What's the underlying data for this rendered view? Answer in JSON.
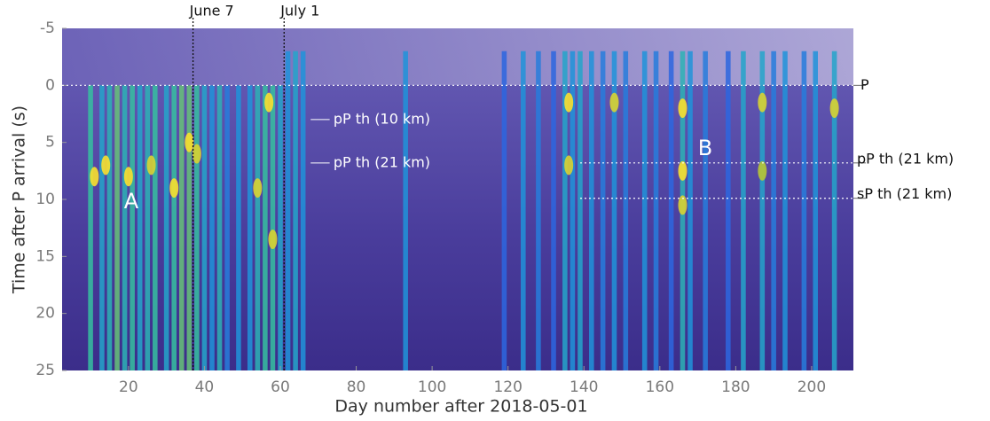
{
  "chart_data": {
    "type": "heatmap",
    "xlabel": "Day number after 2018-05-01",
    "ylabel": "Time after P arrival (s)",
    "xlim": [
      2.5,
      211
    ],
    "ylim": [
      -5,
      25
    ],
    "y_inverted": true,
    "xticks": [
      20,
      40,
      60,
      80,
      100,
      120,
      140,
      160,
      180,
      200
    ],
    "yticks": [
      -5,
      0,
      5,
      10,
      15,
      20,
      25
    ],
    "colormap": [
      "#3e26a8",
      "#2f5fe0",
      "#1e9ad8",
      "#36c0a0",
      "#b8c534",
      "#f9e02e"
    ],
    "stripes": {
      "days": [
        10,
        13,
        15,
        17,
        19,
        21,
        23,
        25,
        27,
        30,
        32,
        34,
        36,
        38,
        40,
        42,
        44,
        46,
        49,
        52,
        54,
        56,
        58,
        60,
        62,
        64,
        66,
        93,
        119,
        124,
        128,
        132,
        135,
        137,
        139,
        142,
        145,
        148,
        151,
        156,
        159,
        163,
        166,
        168,
        172,
        178,
        182,
        187,
        190,
        193,
        198,
        201,
        206
      ],
      "strength": [
        0.8,
        0.6,
        0.7,
        0.9,
        0.7,
        0.8,
        0.6,
        0.7,
        0.8,
        0.6,
        0.8,
        0.9,
        0.9,
        0.8,
        0.6,
        0.5,
        0.7,
        0.4,
        0.5,
        0.5,
        0.7,
        0.8,
        0.8,
        0.6,
        0.5,
        0.6,
        0.5,
        0.5,
        0.3,
        0.5,
        0.4,
        0.3,
        0.6,
        0.5,
        0.6,
        0.5,
        0.4,
        0.5,
        0.4,
        0.5,
        0.4,
        0.3,
        0.7,
        0.5,
        0.4,
        0.3,
        0.6,
        0.6,
        0.4,
        0.5,
        0.4,
        0.5,
        0.6
      ]
    },
    "hotspots": [
      {
        "day": 11,
        "time": 8,
        "strength": 1
      },
      {
        "day": 14,
        "time": 7,
        "strength": 1
      },
      {
        "day": 20,
        "time": 8,
        "strength": 1
      },
      {
        "day": 26,
        "time": 7,
        "strength": 0.9
      },
      {
        "day": 32,
        "time": 9,
        "strength": 1
      },
      {
        "day": 36,
        "time": 5,
        "strength": 1
      },
      {
        "day": 38,
        "time": 6,
        "strength": 0.9
      },
      {
        "day": 54,
        "time": 9,
        "strength": 0.9
      },
      {
        "day": 57,
        "time": 1.5,
        "strength": 1
      },
      {
        "day": 58,
        "time": 13.5,
        "strength": 0.9
      },
      {
        "day": 136,
        "time": 1.5,
        "strength": 1
      },
      {
        "day": 136,
        "time": 7,
        "strength": 0.9
      },
      {
        "day": 148,
        "time": 1.5,
        "strength": 0.9
      },
      {
        "day": 166,
        "time": 2,
        "strength": 1
      },
      {
        "day": 166,
        "time": 7.5,
        "strength": 1
      },
      {
        "day": 166,
        "time": 10.5,
        "strength": 0.9
      },
      {
        "day": 187,
        "time": 1.5,
        "strength": 0.9
      },
      {
        "day": 187,
        "time": 7.5,
        "strength": 0.8
      },
      {
        "day": 206,
        "time": 2,
        "strength": 0.9
      }
    ],
    "date_markers": [
      {
        "label": "June 7",
        "day": 37
      },
      {
        "label": "July 1",
        "day": 61
      }
    ],
    "phase_lines": [
      {
        "label": "P",
        "time": 0
      },
      {
        "label": "pP th (21 km)",
        "time": 6.8,
        "start_day": 139
      },
      {
        "label": "sP th (21 km)",
        "time": 9.9,
        "start_day": 139
      }
    ],
    "inner_labels": [
      {
        "label": "pP th (10 km)",
        "time": 3
      },
      {
        "label": "pP th (21 km)",
        "time": 6.8
      }
    ],
    "regions": [
      "A",
      "B"
    ]
  }
}
